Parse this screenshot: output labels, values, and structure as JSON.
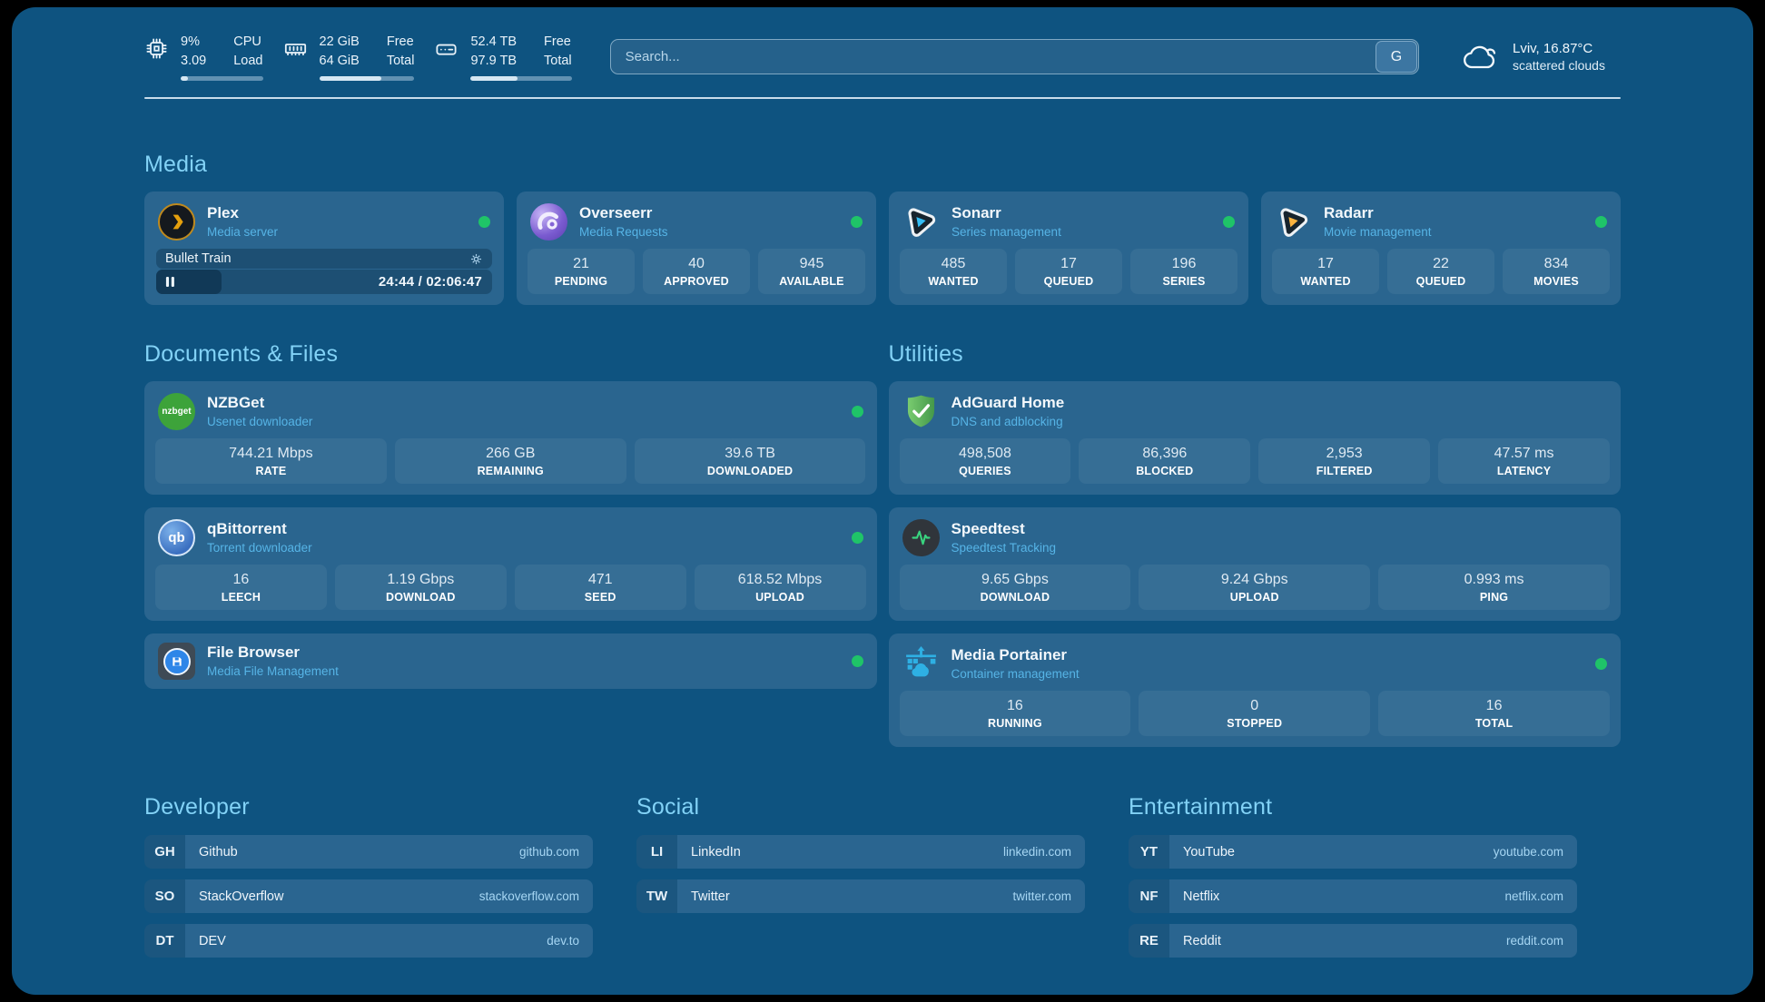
{
  "colors": {
    "background": "#0e5380",
    "card": "#2a658f",
    "heading": "#82d2f6",
    "status_online": "#1fc468"
  },
  "header": {
    "stats": [
      {
        "icon": "cpu-icon",
        "value_top": "9%",
        "value_bottom": "3.09",
        "label_top": "CPU",
        "label_bottom": "Load",
        "bar_pct": 9
      },
      {
        "icon": "ram-icon",
        "value_top": "22 GiB",
        "value_bottom": "64 GiB",
        "label_top": "Free",
        "label_bottom": "Total",
        "bar_pct": 65
      },
      {
        "icon": "disk-icon",
        "value_top": "52.4 TB",
        "value_bottom": "97.9 TB",
        "label_top": "Free",
        "label_bottom": "Total",
        "bar_pct": 46
      }
    ],
    "search": {
      "placeholder": "Search...",
      "button_label": "G"
    },
    "weather": {
      "icon": "cloud-icon",
      "location_temp": "Lviv, 16.87°C",
      "condition": "scattered clouds"
    }
  },
  "sections": {
    "media": {
      "title": "Media",
      "plex": {
        "icon": "plex-icon",
        "name": "Plex",
        "subtitle": "Media server",
        "online": true,
        "now_playing": "Bullet Train",
        "elapsed_total": "24:44 / 02:06:47",
        "progress_pct": 19.5
      },
      "overseerr": {
        "icon": "overseerr-icon",
        "name": "Overseerr",
        "subtitle": "Media Requests",
        "online": true,
        "stats": [
          {
            "value": "21",
            "label": "PENDING"
          },
          {
            "value": "40",
            "label": "APPROVED"
          },
          {
            "value": "945",
            "label": "AVAILABLE"
          }
        ]
      },
      "sonarr": {
        "icon": "sonarr-icon",
        "name": "Sonarr",
        "subtitle": "Series management",
        "online": true,
        "stats": [
          {
            "value": "485",
            "label": "WANTED"
          },
          {
            "value": "17",
            "label": "QUEUED"
          },
          {
            "value": "196",
            "label": "SERIES"
          }
        ]
      },
      "radarr": {
        "icon": "radarr-icon",
        "name": "Radarr",
        "subtitle": "Movie management",
        "online": true,
        "stats": [
          {
            "value": "17",
            "label": "WANTED"
          },
          {
            "value": "22",
            "label": "QUEUED"
          },
          {
            "value": "834",
            "label": "MOVIES"
          }
        ]
      }
    },
    "documents": {
      "title": "Documents & Files",
      "nzbget": {
        "icon": "nzbget-icon",
        "icon_text": "nzbget",
        "name": "NZBGet",
        "subtitle": "Usenet downloader",
        "online": true,
        "stats": [
          {
            "value": "744.21 Mbps",
            "label": "RATE"
          },
          {
            "value": "266 GB",
            "label": "REMAINING"
          },
          {
            "value": "39.6 TB",
            "label": "DOWNLOADED"
          }
        ]
      },
      "qbittorrent": {
        "icon": "qbittorrent-icon",
        "icon_text": "qb",
        "name": "qBittorrent",
        "subtitle": "Torrent downloader",
        "online": true,
        "stats": [
          {
            "value": "16",
            "label": "LEECH"
          },
          {
            "value": "1.19 Gbps",
            "label": "DOWNLOAD"
          },
          {
            "value": "471",
            "label": "SEED"
          },
          {
            "value": "618.52 Mbps",
            "label": "UPLOAD"
          }
        ]
      },
      "filebrowser": {
        "icon": "filebrowser-icon",
        "name": "File Browser",
        "subtitle": "Media File Management",
        "online": true
      }
    },
    "utilities": {
      "title": "Utilities",
      "adguard": {
        "icon": "adguard-icon",
        "name": "AdGuard Home",
        "subtitle": "DNS and adblocking",
        "stats": [
          {
            "value": "498,508",
            "label": "QUERIES"
          },
          {
            "value": "86,396",
            "label": "BLOCKED"
          },
          {
            "value": "2,953",
            "label": "FILTERED"
          },
          {
            "value": "47.57 ms",
            "label": "LATENCY"
          }
        ]
      },
      "speedtest": {
        "icon": "speedtest-icon",
        "name": "Speedtest",
        "subtitle": "Speedtest Tracking",
        "stats": [
          {
            "value": "9.65 Gbps",
            "label": "DOWNLOAD"
          },
          {
            "value": "9.24 Gbps",
            "label": "UPLOAD"
          },
          {
            "value": "0.993 ms",
            "label": "PING"
          }
        ]
      },
      "portainer": {
        "icon": "portainer-icon",
        "name": "Media Portainer",
        "subtitle": "Container management",
        "online": true,
        "stats": [
          {
            "value": "16",
            "label": "RUNNING"
          },
          {
            "value": "0",
            "label": "STOPPED"
          },
          {
            "value": "16",
            "label": "TOTAL"
          }
        ]
      }
    },
    "bookmarks": {
      "developer": {
        "title": "Developer",
        "items": [
          {
            "abbr": "GH",
            "name": "Github",
            "url": "github.com"
          },
          {
            "abbr": "SO",
            "name": "StackOverflow",
            "url": "stackoverflow.com"
          },
          {
            "abbr": "DT",
            "name": "DEV",
            "url": "dev.to"
          }
        ]
      },
      "social": {
        "title": "Social",
        "items": [
          {
            "abbr": "LI",
            "name": "LinkedIn",
            "url": "linkedin.com"
          },
          {
            "abbr": "TW",
            "name": "Twitter",
            "url": "twitter.com"
          }
        ]
      },
      "entertainment": {
        "title": "Entertainment",
        "items": [
          {
            "abbr": "YT",
            "name": "YouTube",
            "url": "youtube.com"
          },
          {
            "abbr": "NF",
            "name": "Netflix",
            "url": "netflix.com"
          },
          {
            "abbr": "RE",
            "name": "Reddit",
            "url": "reddit.com"
          }
        ]
      }
    }
  }
}
